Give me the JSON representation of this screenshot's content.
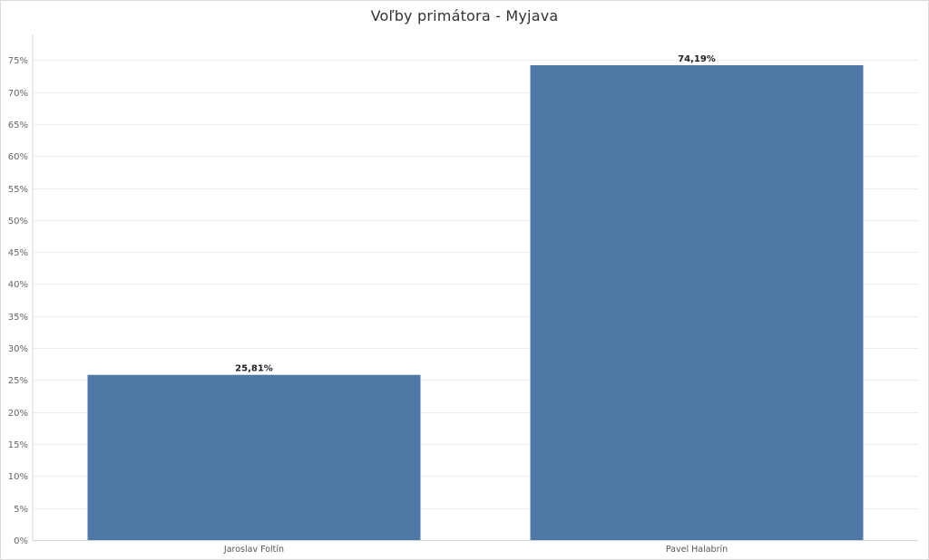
{
  "chart_data": {
    "type": "bar",
    "title": "Voľby primátora - Myjava",
    "xlabel": "",
    "ylabel": "",
    "categories": [
      "Jaroslav Foltín",
      "Pavel Halabrín"
    ],
    "values": [
      25.81,
      74.19
    ],
    "value_labels": [
      "25,81%",
      "74,19%"
    ],
    "ylim": [
      0,
      79
    ],
    "yticks": [
      0,
      5,
      10,
      15,
      20,
      25,
      30,
      35,
      40,
      45,
      50,
      55,
      60,
      65,
      70,
      75
    ],
    "ytick_labels": [
      "0%",
      "5%",
      "10%",
      "15%",
      "20%",
      "25%",
      "30%",
      "35%",
      "40%",
      "45%",
      "50%",
      "55%",
      "60%",
      "65%",
      "70%",
      "75%"
    ],
    "grid": true,
    "legend": "none",
    "bar_color": "#4e79a7"
  }
}
